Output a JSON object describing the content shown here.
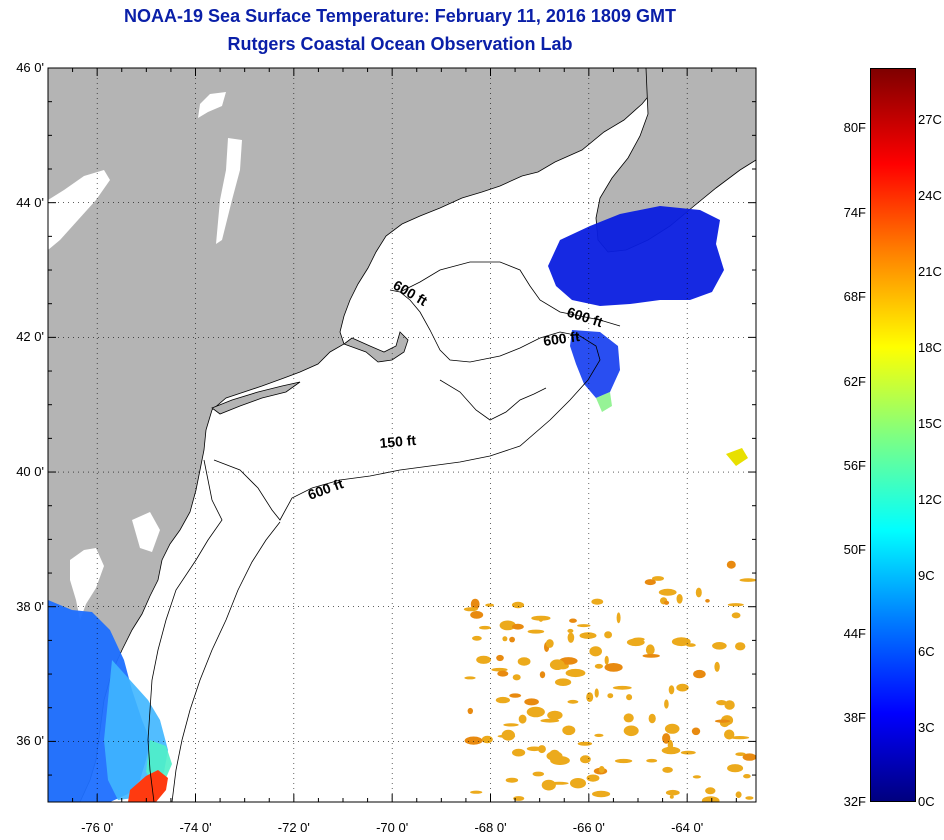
{
  "title": "NOAA-19 Sea Surface Temperature:  February 11, 2016 1809 GMT",
  "subtitle": "Rutgers Coastal Ocean Observation Lab",
  "y_ticks": [
    {
      "lat": 46,
      "label": "46 0'"
    },
    {
      "lat": 44,
      "label": "44 0'"
    },
    {
      "lat": 42,
      "label": "42 0'"
    },
    {
      "lat": 40,
      "label": "40 0'"
    },
    {
      "lat": 38,
      "label": "38 0'"
    },
    {
      "lat": 36,
      "label": "36 0'"
    }
  ],
  "x_ticks": [
    {
      "lon": -76,
      "label": "-76 0'"
    },
    {
      "lon": -74,
      "label": "-74 0'"
    },
    {
      "lon": -72,
      "label": "-72 0'"
    },
    {
      "lon": -70,
      "label": "-70 0'"
    },
    {
      "lon": -68,
      "label": "-68 0'"
    },
    {
      "lon": -66,
      "label": "-66 0'"
    },
    {
      "lon": -64,
      "label": "-64 0'"
    }
  ],
  "depth_labels": [
    "600 ft",
    "600 ft",
    "600 ft",
    "150 ft",
    "600 ft"
  ],
  "colorbar": {
    "fahrenheit": [
      "80F",
      "74F",
      "68F",
      "62F",
      "56F",
      "50F",
      "44F",
      "38F",
      "32F"
    ],
    "celsius": [
      "27C",
      "24C",
      "21C",
      "18C",
      "15C",
      "12C",
      "9C",
      "6C",
      "3C",
      "0C"
    ],
    "colors": [
      "#00007f",
      "#0000ff",
      "#0080ff",
      "#00ffff",
      "#80ff80",
      "#ffff00",
      "#ff8000",
      "#ff0000",
      "#7f0000"
    ]
  },
  "colors": {
    "land": "#b4b4b4",
    "title": "#0a1fa8",
    "ocean": "#ffffff"
  }
}
